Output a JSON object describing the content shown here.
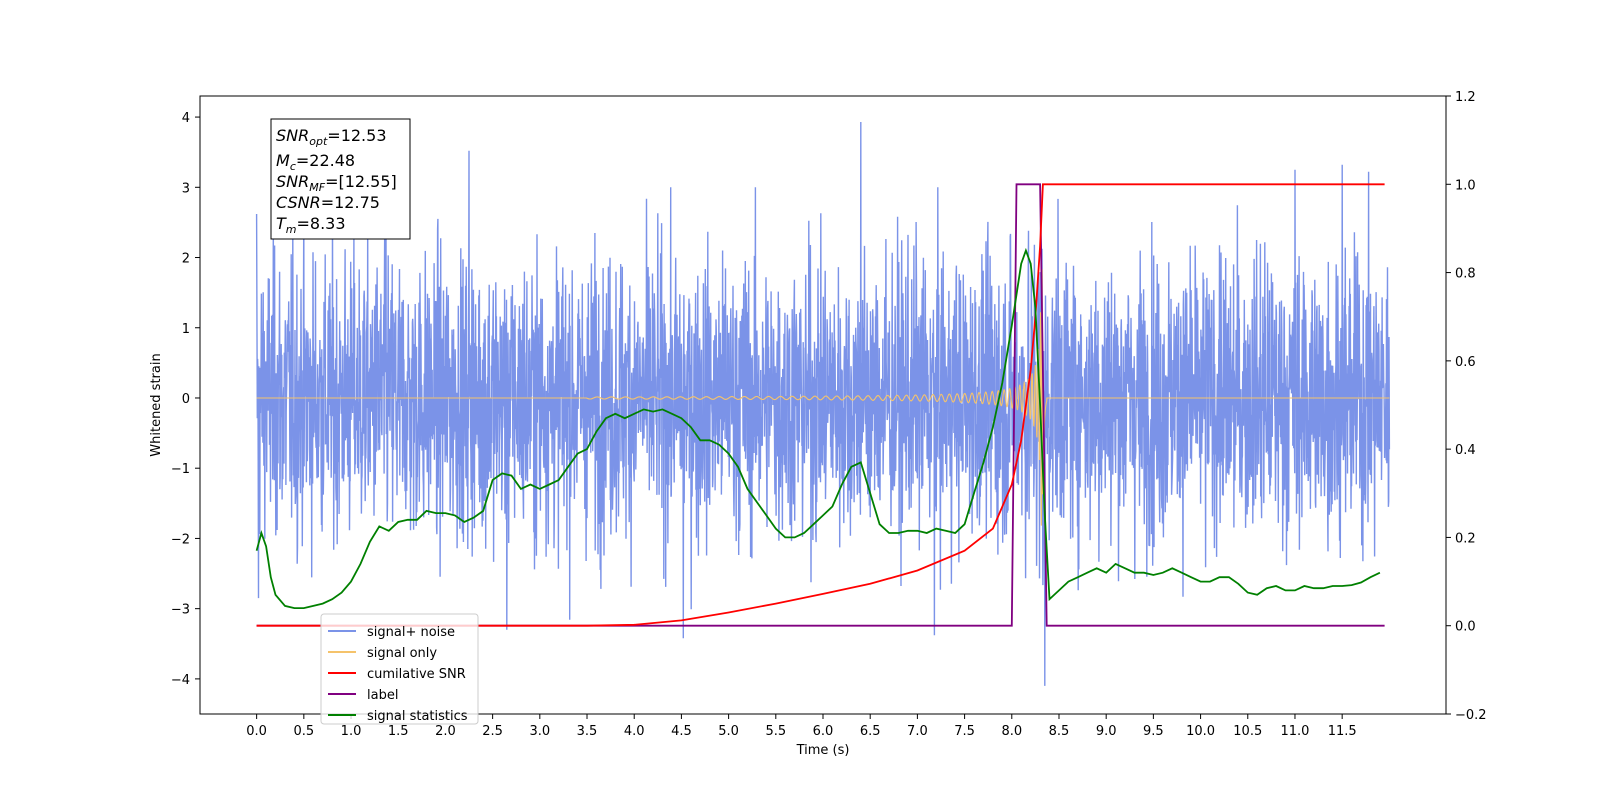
{
  "chart_data": {
    "type": "line",
    "xlabel": "Time (s)",
    "ylabel": "Whitened strain",
    "xlim": [
      -0.6,
      12.6
    ],
    "ylim": [
      -4.5,
      4.3
    ],
    "y2lim": [
      -0.2,
      1.2
    ],
    "x_ticks": [
      "0.0",
      "0.5",
      "1.0",
      "1.5",
      "2.0",
      "2.5",
      "3.0",
      "3.5",
      "4.0",
      "4.5",
      "5.0",
      "5.5",
      "6.0",
      "6.5",
      "7.0",
      "7.5",
      "8.0",
      "8.5",
      "9.0",
      "9.5",
      "10.0",
      "10.5",
      "11.0",
      "11.5"
    ],
    "y_ticks": [
      "4",
      "3",
      "2",
      "1",
      "0",
      "−1",
      "−2",
      "−3",
      "−4"
    ],
    "y2_ticks": [
      "1.2",
      "1.0",
      "0.8",
      "0.6",
      "0.4",
      "0.2",
      "0.0",
      "−0.2"
    ],
    "grid": false,
    "legend_position": "lower-left",
    "info_box": {
      "snr_opt": {
        "base": "SNR",
        "sub": "opt",
        "value": "=12.53"
      },
      "mc": {
        "base": "M",
        "sub": "c",
        "value": "=22.48"
      },
      "snr_mf": {
        "base": "SNR",
        "sub": "MF",
        "value": "=[12.55]"
      },
      "csnr": {
        "base": "CSNR",
        "value": "=12.75"
      },
      "tm": {
        "base": "T",
        "sub": "m",
        "value": "=8.33"
      }
    },
    "series": [
      {
        "name": "signal+ noise",
        "axis": "left",
        "color": "#7b93e8",
        "noise_sigma": 1.0,
        "time_range": [
          0.0,
          12.0
        ],
        "peak_values": [
          {
            "x": 0.0,
            "y": 2.62
          },
          {
            "x": 0.02,
            "y": -2.85
          },
          {
            "x": 1.37,
            "y": 2.48
          },
          {
            "x": 2.25,
            "y": 3.52
          },
          {
            "x": 2.65,
            "y": -3.3
          },
          {
            "x": 4.52,
            "y": -3.42
          },
          {
            "x": 6.4,
            "y": 3.93
          },
          {
            "x": 7.18,
            "y": -3.38
          },
          {
            "x": 8.35,
            "y": -4.1
          },
          {
            "x": 11.0,
            "y": 3.25
          },
          {
            "x": 11.5,
            "y": 3.32
          },
          {
            "x": 11.78,
            "y": 3.22
          }
        ]
      },
      {
        "name": "signal only",
        "axis": "left",
        "color": "#f5c36b",
        "chirp_start": 3.5,
        "merger_time": 8.33,
        "peak_amplitude": 1.9
      },
      {
        "name": "cumilative SNR",
        "axis": "right",
        "color": "#ff0000",
        "x": [
          0.0,
          3.5,
          4.0,
          4.5,
          5.0,
          5.5,
          6.0,
          6.5,
          7.0,
          7.5,
          7.8,
          8.0,
          8.1,
          8.2,
          8.25,
          8.3,
          8.33,
          8.35,
          11.95
        ],
        "y": [
          0.0,
          0.0,
          0.002,
          0.012,
          0.03,
          0.05,
          0.072,
          0.095,
          0.125,
          0.17,
          0.22,
          0.32,
          0.42,
          0.58,
          0.7,
          0.86,
          1.0,
          1.0,
          1.0
        ]
      },
      {
        "name": "label",
        "axis": "right",
        "color": "#800080",
        "x": [
          0.0,
          8.0,
          8.05,
          8.3,
          8.37,
          11.95
        ],
        "y": [
          0.0,
          0.0,
          1.0,
          1.0,
          0.0,
          0.0
        ]
      },
      {
        "name": "signal statistics",
        "axis": "right",
        "color": "#008000",
        "x": [
          0.0,
          0.05,
          0.1,
          0.15,
          0.2,
          0.3,
          0.4,
          0.5,
          0.6,
          0.7,
          0.8,
          0.9,
          1.0,
          1.1,
          1.2,
          1.3,
          1.4,
          1.5,
          1.6,
          1.7,
          1.8,
          1.9,
          2.0,
          2.1,
          2.2,
          2.3,
          2.4,
          2.5,
          2.6,
          2.7,
          2.8,
          2.9,
          3.0,
          3.1,
          3.2,
          3.3,
          3.4,
          3.5,
          3.6,
          3.7,
          3.8,
          3.9,
          4.0,
          4.1,
          4.2,
          4.3,
          4.4,
          4.5,
          4.6,
          4.7,
          4.8,
          4.9,
          5.0,
          5.1,
          5.2,
          5.3,
          5.4,
          5.5,
          5.6,
          5.7,
          5.8,
          5.9,
          6.0,
          6.1,
          6.2,
          6.3,
          6.4,
          6.5,
          6.6,
          6.7,
          6.8,
          6.9,
          7.0,
          7.1,
          7.2,
          7.3,
          7.4,
          7.5,
          7.6,
          7.7,
          7.8,
          7.9,
          8.0,
          8.1,
          8.15,
          8.2,
          8.25,
          8.3,
          8.35,
          8.4,
          8.5,
          8.6,
          8.7,
          8.8,
          8.9,
          9.0,
          9.1,
          9.2,
          9.3,
          9.4,
          9.5,
          9.6,
          9.7,
          9.8,
          9.9,
          10.0,
          10.1,
          10.2,
          10.3,
          10.4,
          10.5,
          10.6,
          10.7,
          10.8,
          10.9,
          11.0,
          11.1,
          11.2,
          11.3,
          11.4,
          11.5,
          11.6,
          11.7,
          11.8,
          11.9
        ],
        "y": [
          0.17,
          0.21,
          0.18,
          0.11,
          0.07,
          0.045,
          0.04,
          0.04,
          0.045,
          0.05,
          0.06,
          0.075,
          0.1,
          0.14,
          0.19,
          0.225,
          0.215,
          0.235,
          0.24,
          0.24,
          0.26,
          0.255,
          0.255,
          0.25,
          0.235,
          0.245,
          0.26,
          0.33,
          0.345,
          0.34,
          0.31,
          0.32,
          0.31,
          0.32,
          0.33,
          0.36,
          0.39,
          0.4,
          0.44,
          0.47,
          0.48,
          0.47,
          0.48,
          0.49,
          0.485,
          0.49,
          0.48,
          0.47,
          0.45,
          0.42,
          0.42,
          0.41,
          0.39,
          0.36,
          0.31,
          0.28,
          0.25,
          0.22,
          0.2,
          0.2,
          0.21,
          0.23,
          0.25,
          0.27,
          0.32,
          0.36,
          0.37,
          0.3,
          0.23,
          0.21,
          0.21,
          0.215,
          0.215,
          0.21,
          0.22,
          0.215,
          0.21,
          0.23,
          0.3,
          0.37,
          0.45,
          0.55,
          0.68,
          0.82,
          0.85,
          0.82,
          0.72,
          0.5,
          0.25,
          0.06,
          0.08,
          0.1,
          0.11,
          0.12,
          0.13,
          0.12,
          0.14,
          0.13,
          0.12,
          0.12,
          0.115,
          0.12,
          0.13,
          0.12,
          0.11,
          0.1,
          0.1,
          0.11,
          0.11,
          0.095,
          0.075,
          0.07,
          0.085,
          0.09,
          0.08,
          0.08,
          0.09,
          0.085,
          0.085,
          0.09,
          0.09,
          0.092,
          0.098,
          0.11,
          0.12
        ]
      }
    ]
  }
}
